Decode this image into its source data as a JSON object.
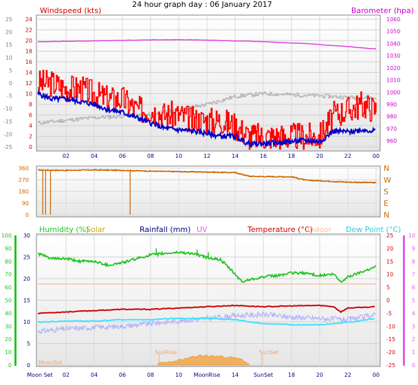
{
  "title": "24 hour graph day : 06 January 2017",
  "colors": {
    "wind_speed": "#ff0000",
    "wind_avg": "#0000cc",
    "temperature_grey": "#b8b8b8",
    "barometer": "#e040e0",
    "wind_dir": "#cc6600",
    "humidity": "#1ec41e",
    "temperature": "#cc0000",
    "dewpoint": "#40e0ff",
    "indoor": "#ffbfa6",
    "lavender": "#b0b0ff",
    "solar": "#f0b060",
    "rain": "#000080",
    "uv": "#e060e0"
  },
  "chart_data": [
    {
      "type": "line",
      "name": "wind-barometer",
      "title": "Windspeed (kts)",
      "right_title": "Barometer (hpa)",
      "x_ticks": [
        "02",
        "04",
        "06",
        "08",
        "10",
        "12",
        "14",
        "16",
        "18",
        "20",
        "22",
        "00"
      ],
      "left_ticks_outer": [
        25,
        20,
        15,
        10,
        5,
        0,
        -5,
        -10,
        -15,
        -20,
        -25
      ],
      "left_ticks_inner": [
        24,
        22,
        20,
        18,
        16,
        14,
        12,
        10,
        8,
        6,
        4,
        2,
        0
      ],
      "right_ticks": [
        1060,
        1050,
        1040,
        1030,
        1020,
        1010,
        1000,
        990,
        980,
        970,
        960
      ],
      "ylim_kts": [
        0,
        24
      ],
      "ylim_hpa": [
        955,
        1060
      ],
      "series": [
        {
          "key": "barometer",
          "hours": [
            0,
            2,
            4,
            6,
            8,
            10,
            12,
            14,
            16,
            18,
            20,
            22,
            24
          ],
          "values": [
            1041.5,
            1041.8,
            1042.2,
            1042.6,
            1043.0,
            1043.2,
            1042.8,
            1042.2,
            1041.5,
            1040.5,
            1039.2,
            1037.5,
            1035.5
          ]
        },
        {
          "key": "temperature_grey",
          "hours": [
            0,
            2,
            4,
            6,
            8,
            10,
            12,
            14,
            16,
            18,
            20,
            22,
            24
          ],
          "values": [
            4.5,
            5.0,
            5.5,
            5.8,
            6.0,
            7.0,
            8.0,
            9.5,
            10.0,
            9.8,
            9.6,
            9.3,
            9.2
          ]
        },
        {
          "key": "wind_speed",
          "hours": [
            0,
            1,
            2,
            3,
            4,
            5,
            6,
            7,
            8,
            9,
            10,
            11,
            12,
            13,
            14,
            15,
            16,
            17,
            18,
            19,
            20,
            21,
            22,
            23,
            24
          ],
          "values": [
            12,
            12,
            11,
            11,
            10,
            9,
            9,
            7,
            7,
            6,
            6,
            5,
            5,
            5,
            4,
            2,
            2,
            2,
            2,
            2,
            2,
            6,
            7,
            8,
            7
          ]
        },
        {
          "key": "wind_avg",
          "hours": [
            0,
            1,
            2,
            3,
            4,
            5,
            6,
            7,
            8,
            9,
            10,
            11,
            12,
            13,
            14,
            15,
            16,
            17,
            18,
            19,
            20,
            21,
            22,
            23,
            24
          ],
          "values": [
            10,
            9,
            9,
            8.5,
            8,
            7,
            6.5,
            5.5,
            4.5,
            3.5,
            3.2,
            3.0,
            2.5,
            2.0,
            2.0,
            0.5,
            0.6,
            0.8,
            1.0,
            1.2,
            1.0,
            3.0,
            2.8,
            3.2,
            3.0
          ]
        }
      ]
    },
    {
      "type": "line",
      "name": "wind-direction",
      "left_ticks": [
        360,
        270,
        180,
        90,
        0
      ],
      "right_labels": [
        "N",
        "W",
        "S",
        "E",
        "N"
      ],
      "ylim": [
        0,
        360
      ],
      "series": [
        {
          "key": "wind_dir",
          "hours": [
            0,
            2,
            4,
            6,
            8,
            10,
            12,
            14,
            15,
            16,
            18,
            19,
            20,
            22,
            24
          ],
          "values": [
            345,
            343,
            346,
            343,
            337,
            333,
            330,
            325,
            297,
            295,
            293,
            267,
            262,
            252,
            248
          ]
        }
      ]
    },
    {
      "type": "line",
      "name": "humidity-temperature",
      "legend": [
        "Humidity (%)",
        "Solar",
        "Rainfall (mm)",
        "UV",
        "Temperature (°C)",
        "Indoor",
        "Dew Point (°C)"
      ],
      "left_ticks_outer": [
        100,
        90,
        80,
        70,
        60,
        50,
        40,
        30,
        20,
        10,
        0
      ],
      "left_ticks_inner": [
        30,
        25,
        20,
        15,
        10,
        5,
        0
      ],
      "right_ticks_inner": [
        25,
        20,
        15,
        10,
        5,
        0,
        -5,
        -10,
        -15,
        -20,
        -25
      ],
      "right_ticks_outer": [
        10,
        9,
        8,
        7,
        6,
        5,
        4,
        3,
        2,
        1,
        0
      ],
      "x_ticks": [
        "Moon Set",
        "02",
        "04",
        "06",
        "08",
        "10",
        "MoonRise",
        "14",
        "SunSet",
        "18",
        "20",
        "22",
        "00"
      ],
      "annotations": [
        "SunRise",
        "SunSet",
        "MoonSet"
      ],
      "ylim_humidity": [
        0,
        100
      ],
      "ylim_temp": [
        -25,
        25
      ],
      "series": [
        {
          "key": "humidity",
          "hours": [
            0,
            1,
            2,
            3,
            4,
            5,
            6,
            7,
            8,
            9,
            10,
            11,
            12,
            13,
            14,
            14.5,
            15,
            16,
            17,
            18,
            19,
            20,
            21,
            21.5,
            22,
            23,
            24
          ],
          "values": [
            86,
            82,
            82,
            80,
            80,
            77,
            79,
            82,
            85,
            86,
            87,
            86,
            83,
            81,
            70,
            64,
            66,
            68,
            69,
            71,
            71,
            69,
            70,
            64,
            68,
            72,
            76
          ]
        },
        {
          "key": "temperature",
          "hours": [
            0,
            2,
            4,
            6,
            8,
            10,
            12,
            14,
            16,
            18,
            20,
            21,
            21.5,
            22,
            24
          ],
          "values": [
            -5.0,
            -4.5,
            -4.0,
            -3.5,
            -3.5,
            -3.0,
            -2.5,
            -2.0,
            -2.5,
            -2.2,
            -2.0,
            -2.5,
            -4.5,
            -3.0,
            -2.5
          ]
        },
        {
          "key": "dewpoint",
          "hours": [
            0,
            2,
            4,
            6,
            8,
            10,
            12,
            14,
            16,
            18,
            20,
            22,
            24
          ],
          "values": [
            -8.5,
            -8.0,
            -8.0,
            -7.5,
            -7.5,
            -7.0,
            -7.0,
            -7.5,
            -9.0,
            -9.5,
            -9.5,
            -8.5,
            -7.0
          ]
        },
        {
          "key": "lavender",
          "hours": [
            0,
            2,
            4,
            6,
            8,
            10,
            12,
            14,
            16,
            18,
            20,
            22,
            24
          ],
          "values": [
            -12.0,
            -11.0,
            -10.5,
            -10.0,
            -9.0,
            -8.0,
            -7.0,
            -6.0,
            -5.5,
            -6.5,
            -7.0,
            -7.5,
            -5.5
          ]
        },
        {
          "key": "indoor",
          "hours": [
            0,
            24
          ],
          "values": [
            6.3,
            6.3
          ]
        },
        {
          "key": "solar",
          "hours": [
            8.5,
            9.5,
            10.5,
            11.5,
            12.5,
            13.5,
            14.5,
            15.0
          ],
          "values": [
            0.2,
            0.5,
            0.9,
            1.4,
            1.3,
            1.2,
            0.8,
            0.1
          ]
        }
      ]
    }
  ]
}
